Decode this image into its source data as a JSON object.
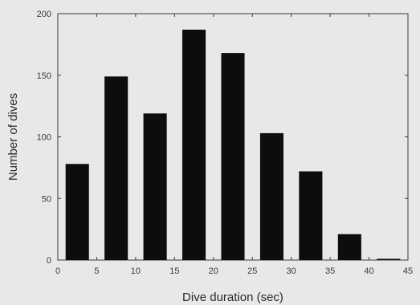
{
  "chart_data": {
    "type": "bar",
    "title": "",
    "xlabel": "Dive duration (sec)",
    "ylabel": "Number of dives",
    "xlim": [
      0,
      45
    ],
    "ylim": [
      0,
      200
    ],
    "xticks": [
      "0",
      "5",
      "10",
      "15",
      "20",
      "25",
      "30",
      "35",
      "40",
      "45"
    ],
    "yticks": [
      "0",
      "50",
      "100",
      "150",
      "200"
    ],
    "bins": [
      {
        "from": 1,
        "to": 4,
        "value": 78
      },
      {
        "from": 6,
        "to": 9,
        "value": 149
      },
      {
        "from": 11,
        "to": 14,
        "value": 119
      },
      {
        "from": 16,
        "to": 19,
        "value": 187
      },
      {
        "from": 21,
        "to": 24,
        "value": 168
      },
      {
        "from": 26,
        "to": 29,
        "value": 103
      },
      {
        "from": 31,
        "to": 34,
        "value": 72
      },
      {
        "from": 36,
        "to": 39,
        "value": 21
      },
      {
        "from": 41,
        "to": 44,
        "value": 1
      }
    ],
    "grid": false,
    "colors": {
      "background": "#e8e8e8",
      "bar": "#0d0d0d",
      "axis": "#3a3a3a"
    }
  }
}
